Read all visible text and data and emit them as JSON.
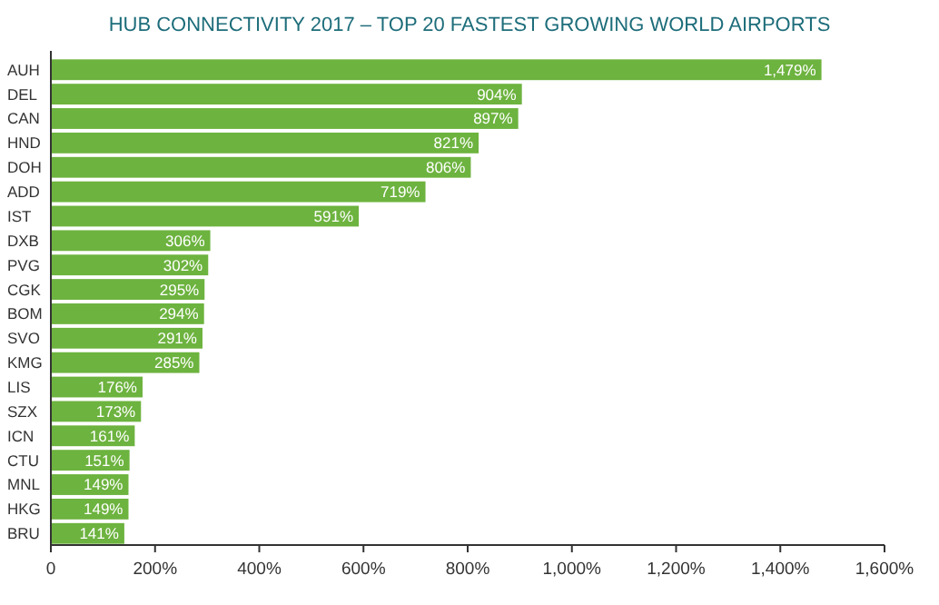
{
  "chart_data": {
    "type": "bar",
    "orientation": "horizontal",
    "title": "HUB CONNECTIVITY 2017 – TOP 20 FASTEST GROWING WORLD AIRPORTS",
    "categories": [
      "AUH",
      "DEL",
      "CAN",
      "HND",
      "DOH",
      "ADD",
      "IST",
      "DXB",
      "PVG",
      "CGK",
      "BOM",
      "SVO",
      "KMG",
      "LIS",
      "SZX",
      "ICN",
      "CTU",
      "MNL",
      "HKG",
      "BRU"
    ],
    "values": [
      1479,
      904,
      897,
      821,
      806,
      719,
      591,
      306,
      302,
      295,
      294,
      291,
      285,
      176,
      173,
      161,
      151,
      149,
      149,
      141
    ],
    "value_labels": [
      "1,479%",
      "904%",
      "897%",
      "821%",
      "806%",
      "719%",
      "591%",
      "306%",
      "302%",
      "295%",
      "294%",
      "291%",
      "285%",
      "176%",
      "173%",
      "161%",
      "151%",
      "149%",
      "149%",
      "141%"
    ],
    "color": "#6db33f",
    "xlim": [
      0,
      1600
    ],
    "xticks": [
      0,
      {
        "value": 200,
        "label": "200%"
      },
      {
        "value": 400,
        "label": "400%"
      },
      {
        "value": 600,
        "label": "600%"
      },
      {
        "value": 800,
        "label": "800%"
      },
      {
        "value": 1000,
        "label": "1,000%"
      },
      {
        "value": 1200,
        "label": "1,200%"
      },
      {
        "value": 1400,
        "label": "1,400%"
      },
      {
        "value": 1600,
        "label": "1,600%"
      }
    ],
    "grid": false
  }
}
